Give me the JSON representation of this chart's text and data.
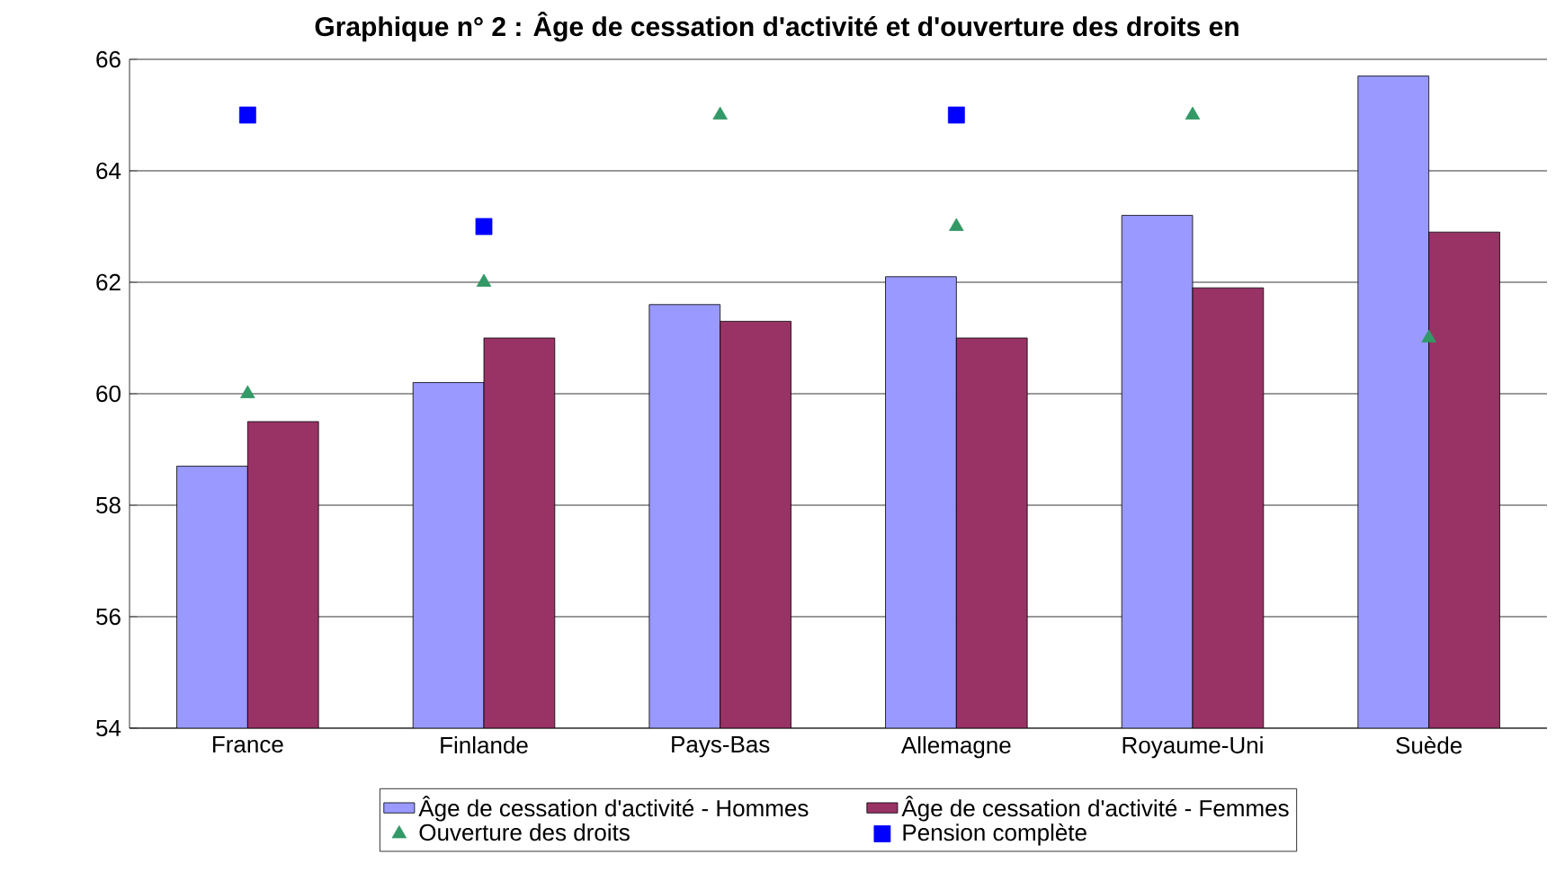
{
  "chart_data": {
    "type": "bar",
    "title": "Graphique n° 2 : Âge de cessation d'activité et d'ouverture des droits en",
    "categories": [
      "France",
      "Finlande",
      "Pays-Bas",
      "Allemagne",
      "Royaume-Uni",
      "Suède"
    ],
    "series": [
      {
        "name": "Âge de cessation d'activité - Hommes",
        "color": "#9999ff",
        "values": [
          58.7,
          60.2,
          61.6,
          62.1,
          63.2,
          65.7
        ]
      },
      {
        "name": "Âge de cessation d'activité - Femmes",
        "color": "#993366",
        "values": [
          59.5,
          61.0,
          61.3,
          61.0,
          61.9,
          62.9
        ]
      },
      {
        "name": "Ouverture des droits",
        "type": "scatter",
        "marker": "triangle",
        "color": "#339966",
        "values": [
          60,
          62,
          65,
          63,
          65,
          61
        ]
      },
      {
        "name": "Pension complète",
        "type": "scatter",
        "marker": "square",
        "color": "#0000ff",
        "values": [
          65,
          63,
          null,
          65,
          null,
          null
        ]
      }
    ],
    "ylim": [
      54,
      66
    ],
    "yticks": [
      54,
      56,
      58,
      60,
      62,
      64,
      66
    ],
    "grid": "y",
    "legend": "bottom"
  }
}
